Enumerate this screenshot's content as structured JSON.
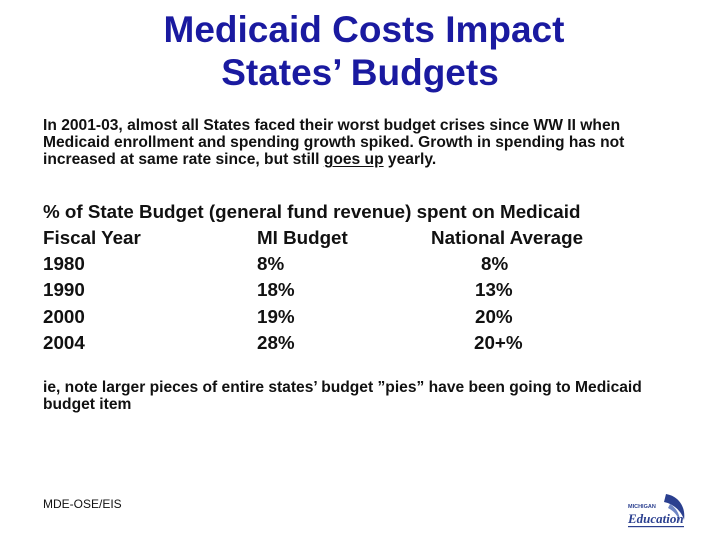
{
  "title": {
    "line1": "Medicaid Costs Impact",
    "line2": "States’ Budgets"
  },
  "intro": {
    "text_before": "In 2001-03, almost all States faced their worst budget crises since WW II when  Medicaid enrollment and spending growth spiked. Growth in spending has not increased at same rate since, but still ",
    "underlined": "goes up",
    "text_after": " yearly."
  },
  "table": {
    "heading": "% of State Budget (general fund revenue) spent on Medicaid",
    "columns": [
      "Fiscal Year",
      "MI Budget",
      "National Average"
    ],
    "rows": [
      [
        "1980",
        "8%",
        "8%"
      ],
      [
        "1990",
        "18%",
        "13%"
      ],
      [
        "2000",
        "19%",
        "20%"
      ],
      [
        "2004",
        "28%",
        "20+%"
      ]
    ]
  },
  "note": "ie, note larger pieces of entire states’ budget ”pies” have been going to Medicaid budget item",
  "footer": "MDE-OSE/EIS",
  "logo": {
    "top_text": "MICHIGAN",
    "main_text": "Education",
    "icon": "michigan-education-logo"
  },
  "colors": {
    "title": "#1a1aa0",
    "body_text": "#111111",
    "background": "#ffffff",
    "logo_blue": "#2a3f8f"
  }
}
